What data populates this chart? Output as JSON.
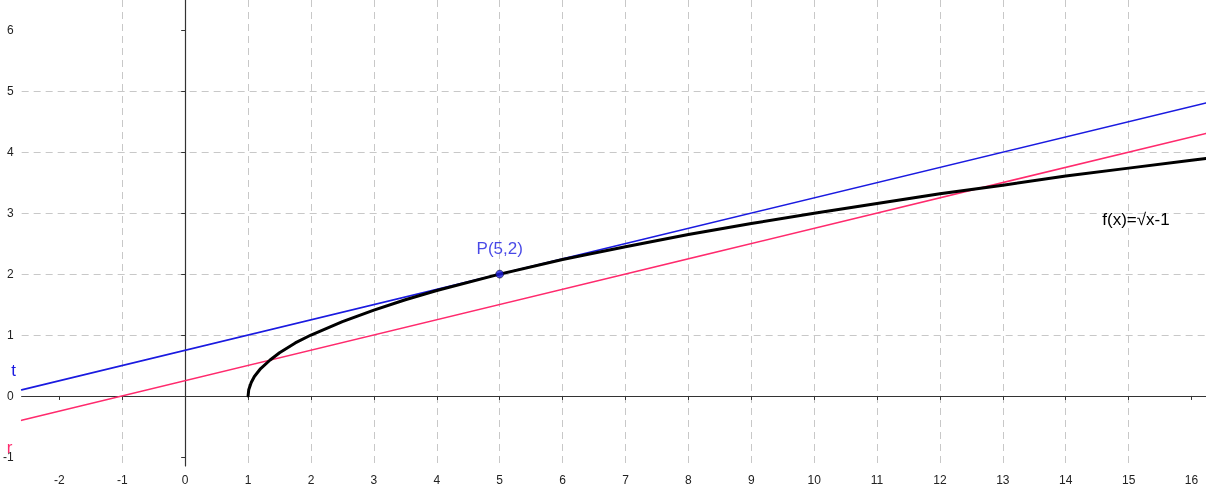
{
  "chart_data": {
    "type": "line",
    "xlim": [
      -2.6,
      16.23
    ],
    "ylim": [
      -1.15,
      6.5
    ],
    "xticks": [
      -2,
      -1,
      0,
      1,
      2,
      3,
      4,
      5,
      6,
      7,
      8,
      9,
      10,
      11,
      12,
      13,
      14,
      15,
      16
    ],
    "yticks": [
      -1,
      0,
      1,
      2,
      3,
      4,
      5,
      6
    ],
    "grid": true,
    "marker": "none",
    "series": [
      {
        "name": "t",
        "color": "#1a1ae0",
        "x": [
          -2.6,
          16.23
        ],
        "values": [
          0.1,
          4.81
        ]
      },
      {
        "name": "r",
        "color": "#ff2a6d",
        "x": [
          -2.6,
          16.23
        ],
        "values": [
          -0.4,
          4.31
        ]
      },
      {
        "name": "f(x)=√x-1",
        "color": "#000000",
        "x": [
          1,
          1.01,
          1.05,
          1.1,
          1.2,
          1.35,
          1.5,
          1.75,
          2,
          2.5,
          3,
          3.5,
          4,
          5,
          6,
          7,
          8,
          9,
          10,
          11,
          12,
          13,
          14,
          15,
          16,
          16.23
        ],
        "values": [
          0,
          0.1,
          0.22,
          0.32,
          0.45,
          0.59,
          0.71,
          0.87,
          1,
          1.22,
          1.41,
          1.58,
          1.73,
          2,
          2.24,
          2.45,
          2.65,
          2.83,
          3,
          3.16,
          3.32,
          3.46,
          3.61,
          3.74,
          3.87,
          3.9
        ]
      },
      {
        "name": "P(5,2)",
        "type": "scatter",
        "marker": "circle",
        "color": "#1a1ae0",
        "x": [
          5
        ],
        "values": [
          2
        ]
      }
    ]
  }
}
